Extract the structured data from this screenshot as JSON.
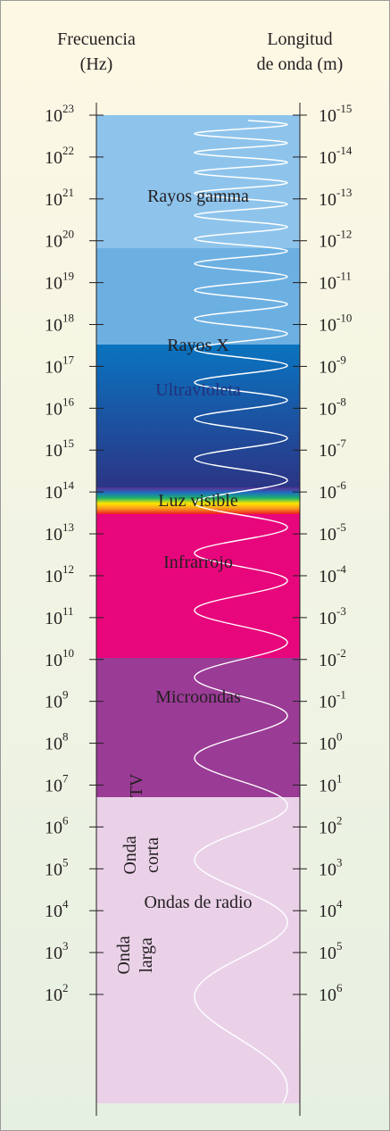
{
  "header": {
    "frequency": "Frecuencia",
    "frequency_unit": "(Hz)",
    "wavelength": "Longitud",
    "wavelength_unit": "de onda (m)"
  },
  "frequency_ticks": [
    {
      "base": "10",
      "exp": "23"
    },
    {
      "base": "10",
      "exp": "22"
    },
    {
      "base": "10",
      "exp": "21"
    },
    {
      "base": "10",
      "exp": "20"
    },
    {
      "base": "10",
      "exp": "19"
    },
    {
      "base": "10",
      "exp": "18"
    },
    {
      "base": "10",
      "exp": "17"
    },
    {
      "base": "10",
      "exp": "16"
    },
    {
      "base": "10",
      "exp": "15"
    },
    {
      "base": "10",
      "exp": "14"
    },
    {
      "base": "10",
      "exp": "13"
    },
    {
      "base": "10",
      "exp": "12"
    },
    {
      "base": "10",
      "exp": "11"
    },
    {
      "base": "10",
      "exp": "10"
    },
    {
      "base": "10",
      "exp": "9"
    },
    {
      "base": "10",
      "exp": "8"
    },
    {
      "base": "10",
      "exp": "7"
    },
    {
      "base": "10",
      "exp": "6"
    },
    {
      "base": "10",
      "exp": "5"
    },
    {
      "base": "10",
      "exp": "4"
    },
    {
      "base": "10",
      "exp": "3"
    },
    {
      "base": "10",
      "exp": "2"
    }
  ],
  "wavelength_ticks": [
    {
      "base": "10",
      "exp": "-15"
    },
    {
      "base": "10",
      "exp": "-14"
    },
    {
      "base": "10",
      "exp": "-13"
    },
    {
      "base": "10",
      "exp": "-12"
    },
    {
      "base": "10",
      "exp": "-11"
    },
    {
      "base": "10",
      "exp": "-10"
    },
    {
      "base": "10",
      "exp": "-9"
    },
    {
      "base": "10",
      "exp": "-8"
    },
    {
      "base": "10",
      "exp": "-7"
    },
    {
      "base": "10",
      "exp": "-6"
    },
    {
      "base": "10",
      "exp": "-5"
    },
    {
      "base": "10",
      "exp": "-4"
    },
    {
      "base": "10",
      "exp": "-3"
    },
    {
      "base": "10",
      "exp": "-2"
    },
    {
      "base": "10",
      "exp": "-1"
    },
    {
      "base": "10",
      "exp": "0"
    },
    {
      "base": "10",
      "exp": "1"
    },
    {
      "base": "10",
      "exp": "2"
    },
    {
      "base": "10",
      "exp": "3"
    },
    {
      "base": "10",
      "exp": "4"
    },
    {
      "base": "10",
      "exp": "5"
    },
    {
      "base": "10",
      "exp": "6"
    }
  ],
  "bands": {
    "gamma": "Rayos gamma",
    "xray": "Rayos X",
    "uv": "Ultravioleta",
    "visible": "Luz visible",
    "infrared": "Infrarrojo",
    "microwave": "Microondas",
    "radio": "Ondas de radio",
    "tv": "TV",
    "short_wave": [
      "Onda",
      "corta"
    ],
    "long_wave": [
      "Onda",
      "larga"
    ]
  }
}
